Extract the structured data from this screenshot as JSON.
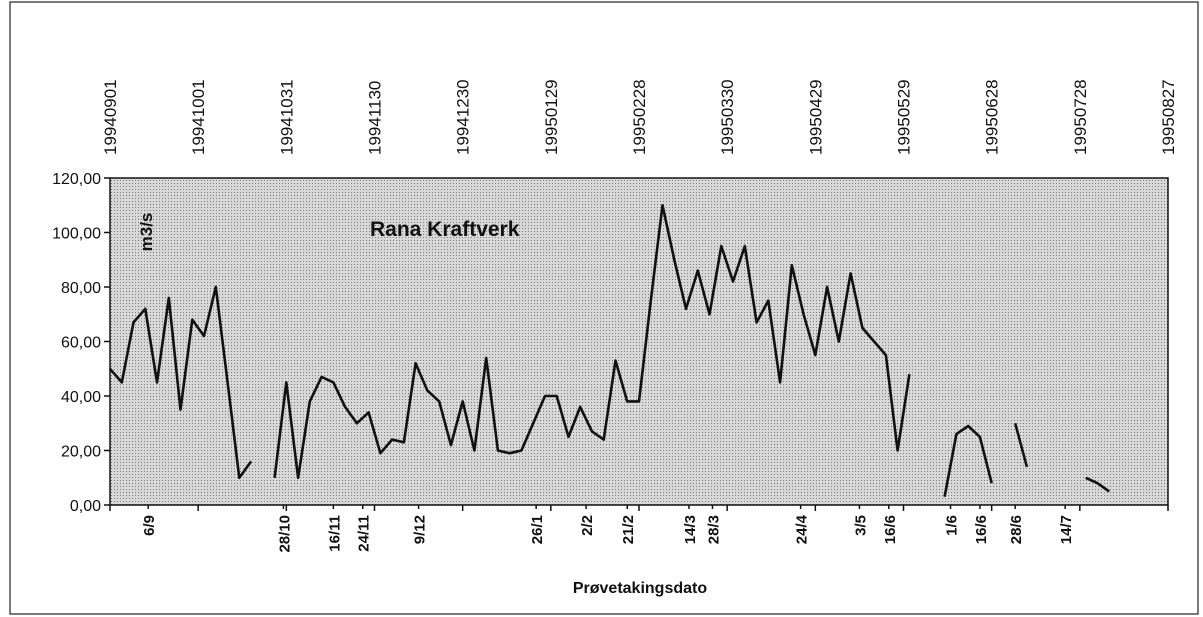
{
  "chart_data": {
    "type": "line",
    "title": "Rana Kraftverk",
    "y_label": "m3/s",
    "x_label": "Prøvetakingsdato",
    "xlim": [
      "19940901",
      "19950827"
    ],
    "xticks": [
      "19940901",
      "19941001",
      "19941031",
      "19941130",
      "19941230",
      "19950129",
      "19950228",
      "19950330",
      "19950429",
      "19950529",
      "19950628",
      "19950728",
      "19950827"
    ],
    "x2ticks": [
      {
        "value": "19940914",
        "label": "6/9"
      },
      {
        "value": "19941030",
        "label": "28/10"
      },
      {
        "value": "19941116",
        "label": "16/11"
      },
      {
        "value": "19941126",
        "label": "24/11"
      },
      {
        "value": "19941215",
        "label": "9/12"
      },
      {
        "value": "19950124",
        "label": "26/1"
      },
      {
        "value": "19950210",
        "label": "2/2"
      },
      {
        "value": "19950224",
        "label": "21/2"
      },
      {
        "value": "19950317",
        "label": "14/3"
      },
      {
        "value": "19950325",
        "label": "28/3"
      },
      {
        "value": "19950424",
        "label": "24/4"
      },
      {
        "value": "19950514",
        "label": "3/5"
      },
      {
        "value": "19950524",
        "label": "16/6"
      },
      {
        "value": "19950614",
        "label": "1/6"
      },
      {
        "value": "19950624",
        "label": "16/6"
      },
      {
        "value": "19950706",
        "label": "28/6"
      },
      {
        "value": "19950723",
        "label": "14/7"
      }
    ],
    "ylim": [
      0,
      120
    ],
    "yticks": [
      {
        "value": 0,
        "label": "0,00"
      },
      {
        "value": 20,
        "label": "20,00"
      },
      {
        "value": 40,
        "label": "40,00"
      },
      {
        "value": 60,
        "label": "60,00"
      },
      {
        "value": 80,
        "label": "80,00"
      },
      {
        "value": 100,
        "label": "100,00"
      },
      {
        "value": 120,
        "label": "120,00"
      }
    ],
    "series": [
      {
        "name": "Rana Kraftverk",
        "color": "#111111",
        "x": [
          "19940901",
          "19940905",
          "19940909",
          "19940913",
          "19940917",
          "19940921",
          "19940925",
          "19940929",
          "19941003",
          "19941007",
          "19941011",
          "19941015",
          "19941019",
          "19941023",
          "19941027",
          "19941031",
          "19941104",
          "19941108",
          "19941112",
          "19941116",
          "19941120",
          "19941124",
          "19941128",
          "19941202",
          "19941206",
          "19941210",
          "19941214",
          "19941218",
          "19941222",
          "19941226",
          "19941230",
          "19950103",
          "19950107",
          "19950111",
          "19950115",
          "19950119",
          "19950123",
          "19950127",
          "19950131",
          "19950204",
          "19950208",
          "19950212",
          "19950216",
          "19950220",
          "19950224",
          "19950228",
          "19950304",
          "19950308",
          "19950312",
          "19950316",
          "19950320",
          "19950324",
          "19950328",
          "19950401",
          "19950405",
          "19950409",
          "19950413",
          "19950417",
          "19950421",
          "19950425",
          "19950429",
          "19950503",
          "19950507",
          "19950511",
          "19950515",
          "19950519",
          "19950523",
          "19950527",
          "19950531",
          "19950604",
          "19950608",
          "19950612",
          "19950616",
          "19950620",
          "19950624",
          "19950628",
          "19950702",
          "19950706",
          "19950710",
          "19950714",
          "19950718",
          "19950722",
          "19950726",
          "19950730",
          "19950803",
          "19950807",
          "19950811",
          "19950815",
          "19950819",
          "19950823",
          "19950827",
          "19950831"
        ],
        "values": [
          50,
          45,
          67,
          72,
          45,
          76,
          35,
          68,
          62,
          80,
          45,
          10,
          16,
          null,
          10,
          45,
          10,
          38,
          47,
          45,
          36,
          30,
          34,
          19,
          24,
          23,
          52,
          42,
          38,
          22,
          38,
          20,
          54,
          20,
          19,
          20,
          30,
          40,
          40,
          25,
          36,
          27,
          24,
          53,
          38,
          38,
          75,
          110,
          90,
          72,
          86,
          70,
          95,
          82,
          95,
          67,
          75,
          45,
          88,
          70,
          55,
          80,
          60,
          85,
          65,
          60,
          55,
          20,
          48,
          null,
          null,
          3,
          26,
          29,
          25,
          8,
          null,
          30,
          14,
          null,
          null,
          null,
          null,
          10,
          8,
          5,
          null,
          null,
          null,
          null,
          null,
          null
        ]
      }
    ]
  }
}
